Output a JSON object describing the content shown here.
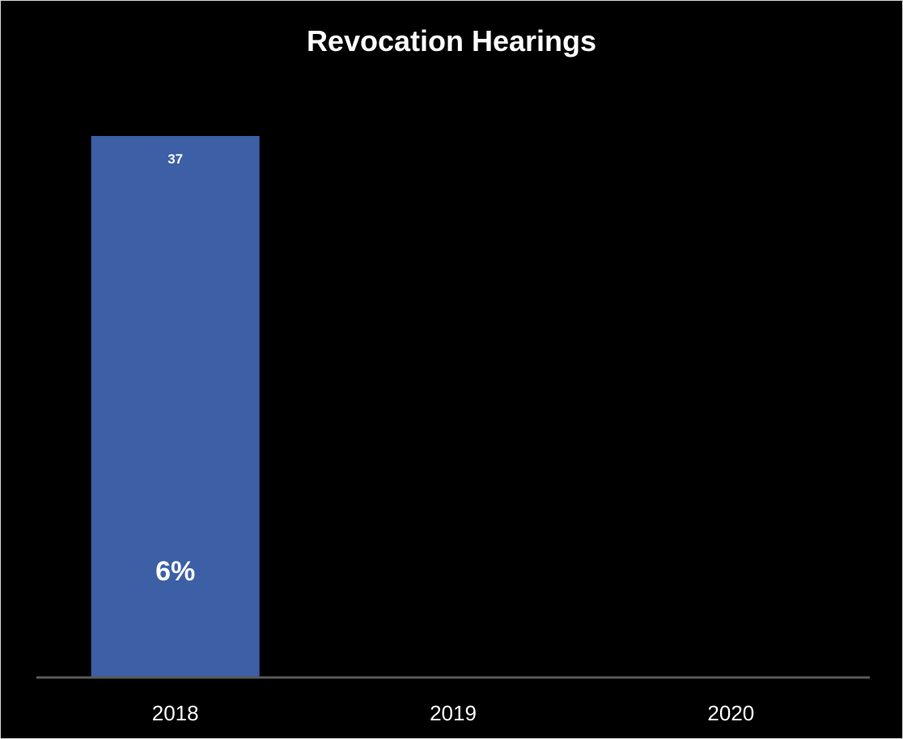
{
  "chart_data": {
    "type": "bar",
    "title": "Revocation Hearings",
    "categories": [
      "2018",
      "2019",
      "2020"
    ],
    "series": [
      {
        "values": [
          37,
          null,
          null
        ],
        "data_labels": [
          "37",
          "",
          ""
        ],
        "percent_labels": [
          "6%",
          "",
          ""
        ],
        "color": "#3c5fa5"
      }
    ],
    "xlabel": "",
    "ylabel": "",
    "ylim": [
      0,
      37
    ],
    "grid": false,
    "legend": "none"
  },
  "colors": {
    "background": "#000000",
    "border": "#d9d9d9",
    "axis_line": "#595959",
    "text": "#ffffff"
  }
}
